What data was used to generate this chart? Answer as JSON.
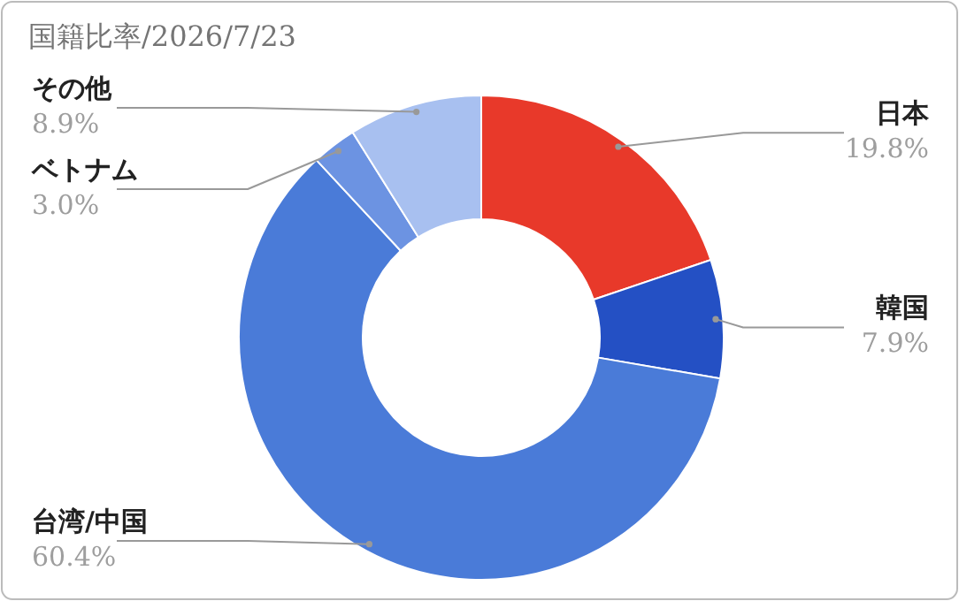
{
  "chart_data": {
    "type": "donut",
    "title": "国籍比率/2026/7/23",
    "categories": [
      "日本",
      "韓国",
      "台湾/中国",
      "ベトナム",
      "その他"
    ],
    "values": [
      19.8,
      7.9,
      60.4,
      3.0,
      8.9
    ],
    "colors": [
      "#e8392a",
      "#2450c4",
      "#4a7bd8",
      "#6c93e2",
      "#a8c0f0"
    ],
    "value_labels": [
      "19.8%",
      "7.9%",
      "60.4%",
      "3.0%",
      "8.9%"
    ]
  }
}
